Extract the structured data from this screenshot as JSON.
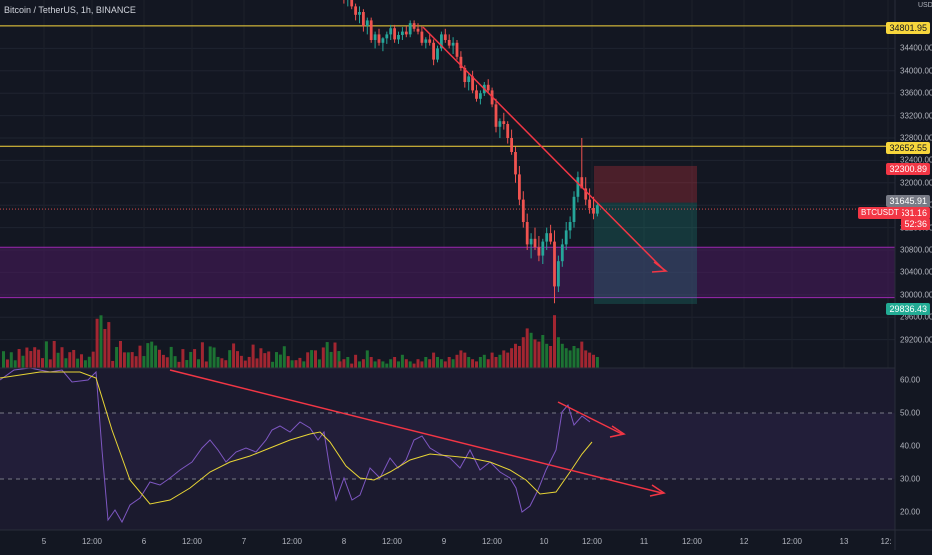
{
  "header": {
    "symbol": "Bitcoin / TetherUS, 1h, BINANCE"
  },
  "currency": {
    "label": "USDT"
  },
  "colors": {
    "background": "#131722",
    "up": "#26a69a",
    "down": "#ef5350",
    "volume_up": "#1e7d35",
    "volume_down": "#b22833",
    "level_line": "#f7d63c",
    "trend_line": "#f23645",
    "rsi_line": "#7e57c2",
    "rsi_ma": "#e8d535",
    "zone": "#4a1a5e"
  },
  "axis": {
    "price_ticks": [
      "34400.00",
      "34000.00",
      "33600.00",
      "33200.00",
      "32800.00",
      "32400.00",
      "32000.00",
      "31600.00",
      "31200.00",
      "30800.00",
      "30400.00",
      "30000.00",
      "29600.00",
      "29200.00"
    ],
    "rsi_ticks": [
      "60.00",
      "50.00",
      "40.00",
      "30.00",
      "20.00"
    ],
    "time_ticks": [
      "5",
      "12:00",
      "6",
      "12:00",
      "7",
      "12:00",
      "8",
      "12:00",
      "9",
      "12:00",
      "10",
      "12:00",
      "11",
      "12:00",
      "12",
      "12:00",
      "13",
      "12:"
    ]
  },
  "price_labels": [
    {
      "text": "34801.95",
      "kind": "level"
    },
    {
      "text": "32652.55",
      "kind": "level"
    },
    {
      "text": "32300.89",
      "kind": "stop"
    },
    {
      "text": "31645.91",
      "kind": "entry"
    },
    {
      "text": "31531.16",
      "kind": "current"
    },
    {
      "text": "52:36",
      "kind": "timer"
    },
    {
      "text": "29836.43",
      "kind": "target"
    }
  ],
  "ticker_tag": "BTCUSDT",
  "chart_data": [
    {
      "type": "candlestick",
      "title": "Bitcoin / TetherUS, 1h, BINANCE",
      "ylim": [
        28900,
        35550
      ],
      "horizontal_levels": [
        34801.95,
        32652.55
      ],
      "current_price": 31531.16,
      "zone": [
        29950,
        30850
      ],
      "position": {
        "entry": 31645.91,
        "stop": 32300.89,
        "target": 29836.43
      },
      "trendline": {
        "from": {
          "x": "Aug 8 19:00",
          "y": 34780
        },
        "to": {
          "x": "Aug 11 07:00",
          "y": 30450
        }
      },
      "x_ticks": [
        "5",
        "12:00",
        "6",
        "12:00",
        "7",
        "12:00",
        "8",
        "12:00",
        "9",
        "12:00",
        "10",
        "12:00",
        "11",
        "12:00",
        "12",
        "12:00",
        "13",
        "12:"
      ],
      "ohlc_approx": [
        [
          35600,
          35700,
          35450,
          35550
        ],
        [
          35550,
          35600,
          35200,
          35300
        ],
        [
          35300,
          35450,
          35150,
          35400
        ],
        [
          35400,
          35500,
          35100,
          35150
        ],
        [
          35150,
          35200,
          34900,
          35000
        ],
        [
          35000,
          35150,
          34850,
          35050
        ],
        [
          35050,
          35100,
          34700,
          34800
        ],
        [
          34800,
          34950,
          34650,
          34900
        ],
        [
          34900,
          34950,
          34500,
          34550
        ],
        [
          34550,
          34700,
          34400,
          34650
        ],
        [
          34650,
          34750,
          34450,
          34500
        ],
        [
          34500,
          34600,
          34350,
          34580
        ],
        [
          34580,
          34700,
          34480,
          34650
        ],
        [
          34650,
          34820,
          34550,
          34760
        ],
        [
          34760,
          34820,
          34500,
          34560
        ],
        [
          34560,
          34700,
          34480,
          34640
        ],
        [
          34640,
          34780,
          34550,
          34700
        ],
        [
          34700,
          34800,
          34600,
          34650
        ],
        [
          34650,
          34900,
          34600,
          34850
        ],
        [
          34850,
          34900,
          34700,
          34750
        ],
        [
          34750,
          34850,
          34650,
          34700
        ],
        [
          34700,
          34800,
          34450,
          34500
        ],
        [
          34500,
          34600,
          34400,
          34560
        ],
        [
          34560,
          34650,
          34450,
          34500
        ],
        [
          34500,
          34560,
          34100,
          34200
        ],
        [
          34200,
          34450,
          34150,
          34400
        ],
        [
          34400,
          34700,
          34350,
          34650
        ],
        [
          34650,
          34750,
          34500,
          34550
        ],
        [
          34550,
          34650,
          34400,
          34450
        ],
        [
          34450,
          34600,
          34300,
          34500
        ],
        [
          34500,
          34550,
          34200,
          34250
        ],
        [
          34250,
          34350,
          34000,
          34050
        ],
        [
          34050,
          34100,
          33700,
          33800
        ],
        [
          33800,
          33950,
          33650,
          33900
        ],
        [
          33900,
          34000,
          33600,
          33650
        ],
        [
          33650,
          33750,
          33450,
          33500
        ],
        [
          33500,
          33650,
          33400,
          33600
        ],
        [
          33600,
          33800,
          33550,
          33750
        ],
        [
          33750,
          33850,
          33600,
          33650
        ],
        [
          33650,
          33700,
          33350,
          33400
        ],
        [
          33400,
          33500,
          32900,
          33000
        ],
        [
          33000,
          33150,
          32800,
          33100
        ],
        [
          33100,
          33250,
          32950,
          33050
        ],
        [
          33050,
          33100,
          32700,
          32800
        ],
        [
          32800,
          32950,
          32500,
          32550
        ],
        [
          32550,
          32650,
          32000,
          32150
        ],
        [
          32150,
          32300,
          31600,
          31700
        ],
        [
          31700,
          31850,
          31200,
          31300
        ],
        [
          31300,
          31450,
          30800,
          30900
        ],
        [
          30900,
          31100,
          30650,
          31000
        ],
        [
          31000,
          31200,
          30800,
          30850
        ],
        [
          30850,
          31050,
          30600,
          30700
        ],
        [
          30700,
          31000,
          30550,
          30950
        ],
        [
          30950,
          31200,
          30800,
          31100
        ],
        [
          31100,
          31250,
          30900,
          30950
        ],
        [
          30950,
          31150,
          29850,
          30150
        ],
        [
          30150,
          30700,
          30050,
          30600
        ],
        [
          30600,
          31000,
          30500,
          30900
        ],
        [
          30900,
          31300,
          30800,
          31150
        ],
        [
          31150,
          31400,
          31000,
          31300
        ],
        [
          31300,
          31850,
          31200,
          31750
        ],
        [
          31750,
          32200,
          31650,
          32100
        ],
        [
          32100,
          32800,
          32000,
          31900
        ],
        [
          31900,
          32100,
          31600,
          31700
        ],
        [
          31700,
          31900,
          31450,
          31550
        ],
        [
          31550,
          31750,
          31350,
          31450
        ],
        [
          31450,
          31650,
          31400,
          31600
        ]
      ]
    },
    {
      "type": "bar",
      "series": [
        {
          "values_approx": [
            3,
            4,
            5,
            2,
            6,
            3,
            4,
            8,
            5,
            3,
            4,
            3,
            2,
            4,
            5,
            3,
            6,
            4,
            3,
            2,
            4,
            3,
            5,
            4,
            7,
            5,
            4,
            3,
            5,
            4,
            6,
            8,
            7,
            5,
            4,
            3,
            5,
            6,
            4,
            7,
            5,
            6,
            8,
            7,
            9,
            11,
            10,
            14,
            18,
            16,
            13,
            12,
            15,
            11,
            10,
            24,
            14,
            11,
            9,
            8,
            10,
            9,
            12,
            8,
            7,
            6,
            5
          ]
        }
      ]
    },
    {
      "type": "line",
      "series": [
        {
          "name": "RSI",
          "y_range": [
            15,
            65
          ]
        },
        {
          "name": "RSI-MA",
          "y_range": [
            15,
            65
          ]
        }
      ],
      "ylim": [
        15,
        63
      ],
      "bands": [
        30,
        50
      ],
      "divergence_line": {
        "from": {
          "x": "Aug 6 07:00",
          "y": 61
        },
        "to": {
          "x": "Aug 11 14:00",
          "y": 26
        }
      }
    }
  ]
}
